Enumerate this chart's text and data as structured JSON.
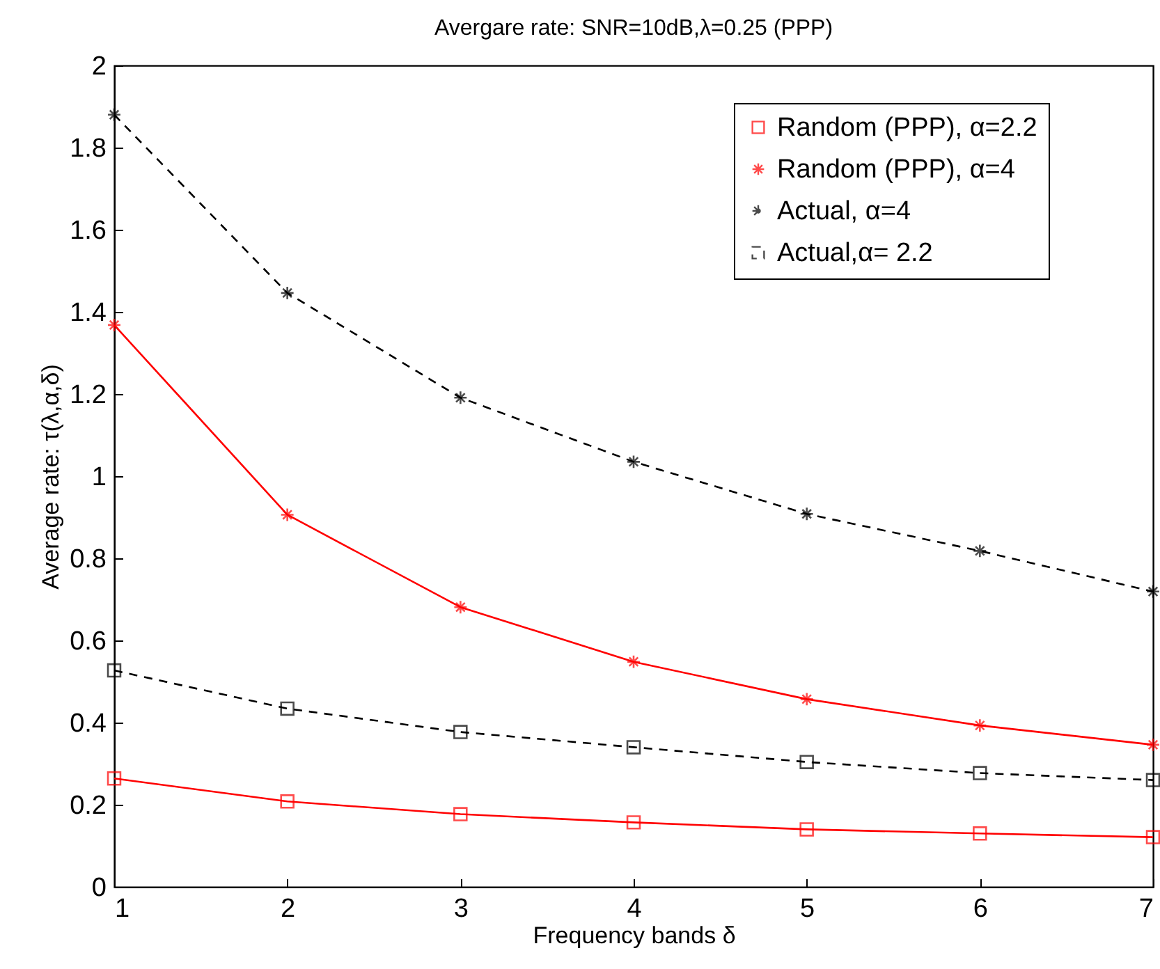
{
  "chart_data": {
    "type": "line",
    "title": "Avergare rate: SNR=10dB,λ=0.25 (PPP)",
    "xlabel": "Frequency bands δ",
    "ylabel": "Average rate: τ(λ,α,δ)",
    "x": [
      1,
      2,
      3,
      4,
      5,
      6,
      7
    ],
    "xlim": [
      1,
      7
    ],
    "xticks": [
      1,
      2,
      3,
      4,
      5,
      6,
      7
    ],
    "ylim": [
      0,
      2
    ],
    "yticks": [
      0,
      0.2,
      0.4,
      0.6,
      0.8,
      1,
      1.2,
      1.4,
      1.6,
      1.8,
      2
    ],
    "grid": false,
    "legend": "top right",
    "series": [
      {
        "name": "Random (PPP), α=2.2",
        "color": "#ff0000",
        "marker": "square",
        "line_style": "solid",
        "values": [
          0.264,
          0.208,
          0.177,
          0.157,
          0.14,
          0.13,
          0.121
        ]
      },
      {
        "name": "Random (PPP), α=4",
        "color": "#ff0000",
        "marker": "cross",
        "line_style": "solid",
        "values": [
          1.368,
          0.906,
          0.681,
          0.548,
          0.457,
          0.393,
          0.346
        ]
      },
      {
        "name": "Actual, α=4",
        "color": "#000000",
        "marker": "cross",
        "line_style": "dashed",
        "values": [
          1.88,
          1.446,
          1.191,
          1.035,
          0.908,
          0.818,
          0.719
        ]
      },
      {
        "name": "Actual,α= 2.2",
        "color": "#000000",
        "marker": "square",
        "line_style": "dashed",
        "values": [
          0.527,
          0.434,
          0.377,
          0.34,
          0.304,
          0.277,
          0.26
        ]
      }
    ]
  }
}
